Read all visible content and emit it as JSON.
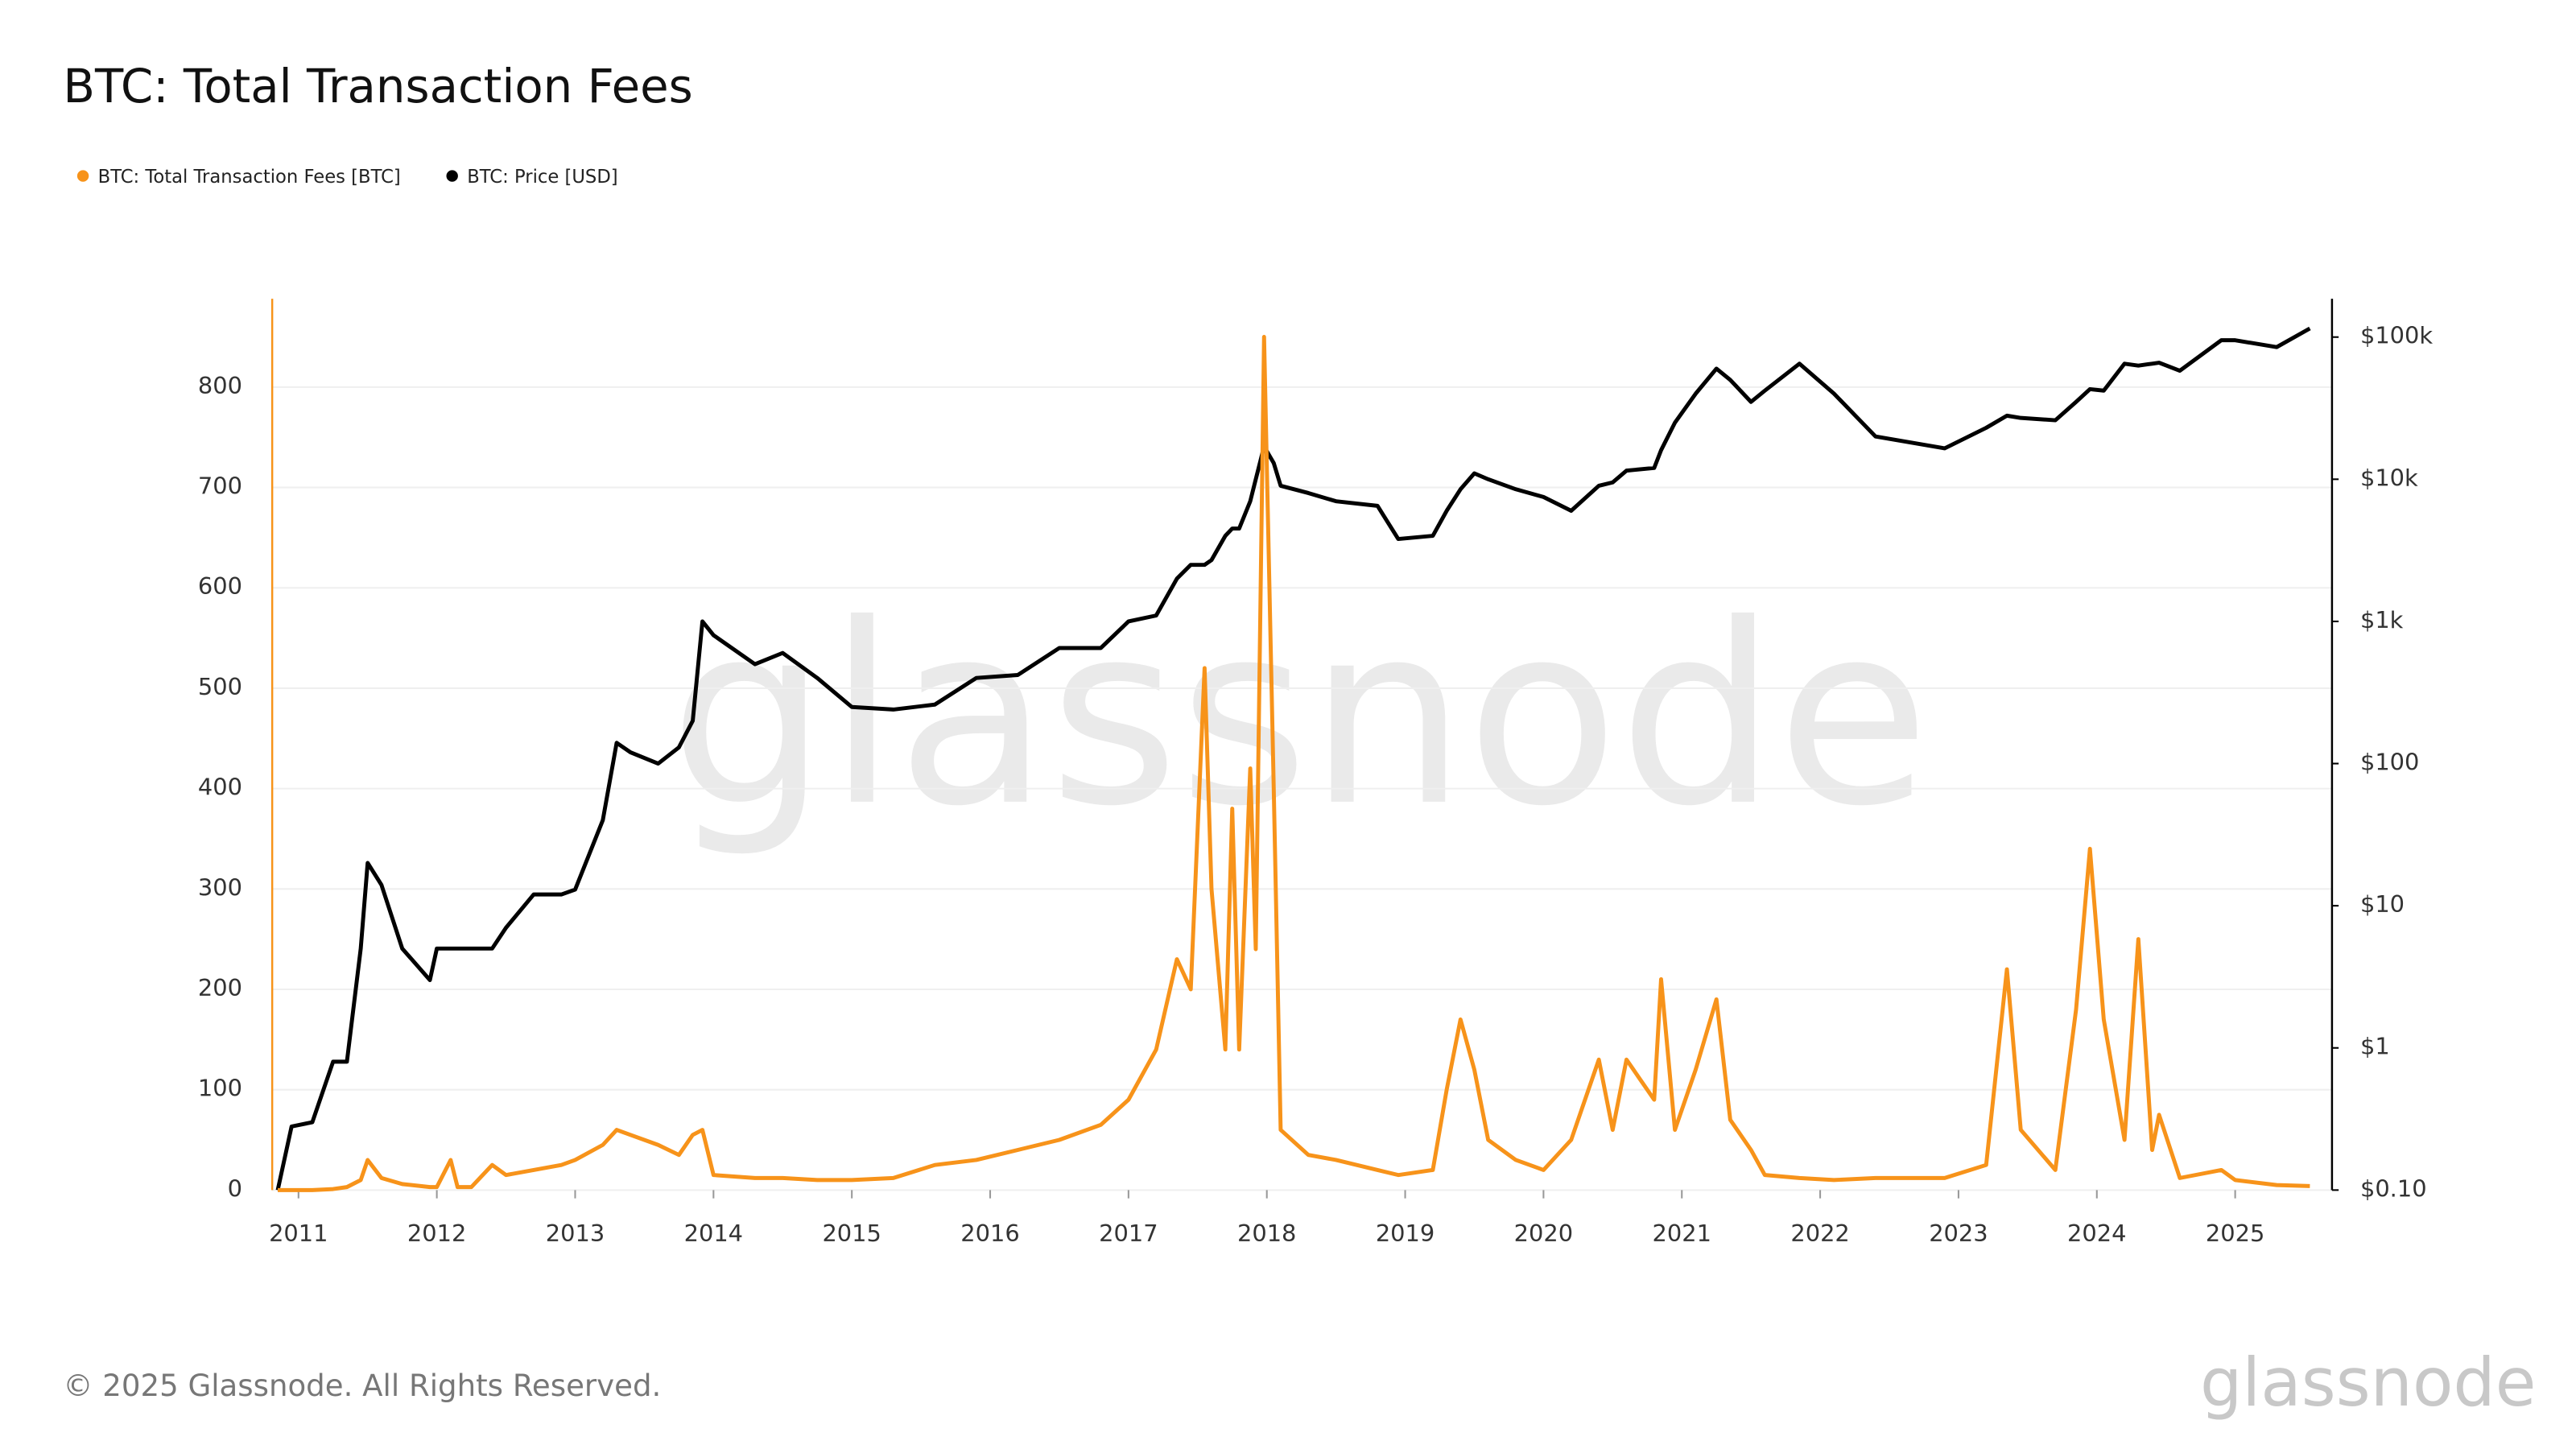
{
  "chart_data": {
    "type": "line",
    "title": "BTC: Total Transaction Fees",
    "footer": "© 2025 Glassnode. All Rights Reserved.",
    "watermark": "glassnode",
    "logo": "glassnode",
    "legend": "top-left",
    "grid": true,
    "y2_scale": "log",
    "x": [
      2010.85,
      2010.95,
      2011.1,
      2011.25,
      2011.35,
      2011.45,
      2011.5,
      2011.6,
      2011.75,
      2011.95,
      2012.0,
      2012.1,
      2012.15,
      2012.25,
      2012.4,
      2012.5,
      2012.7,
      2012.9,
      2013.0,
      2013.2,
      2013.3,
      2013.4,
      2013.6,
      2013.75,
      2013.85,
      2013.92,
      2014.0,
      2014.3,
      2014.5,
      2014.75,
      2015.0,
      2015.3,
      2015.6,
      2015.9,
      2016.2,
      2016.5,
      2016.8,
      2017.0,
      2017.2,
      2017.35,
      2017.45,
      2017.55,
      2017.6,
      2017.7,
      2017.75,
      2017.8,
      2017.88,
      2017.92,
      2017.98,
      2018.05,
      2018.1,
      2018.3,
      2018.5,
      2018.8,
      2018.95,
      2019.2,
      2019.3,
      2019.4,
      2019.5,
      2019.6,
      2019.8,
      2020.0,
      2020.2,
      2020.4,
      2020.5,
      2020.6,
      2020.8,
      2020.85,
      2020.95,
      2021.1,
      2021.25,
      2021.35,
      2021.5,
      2021.6,
      2021.85,
      2022.1,
      2022.4,
      2022.9,
      2023.2,
      2023.35,
      2023.45,
      2023.7,
      2023.85,
      2023.95,
      2024.05,
      2024.2,
      2024.3,
      2024.4,
      2024.45,
      2024.6,
      2024.9,
      2025.0,
      2025.3,
      2025.54
    ],
    "series": [
      {
        "name": "BTC: Total Transaction Fees [BTC]",
        "color": "#f7931a",
        "axis": "y",
        "values": [
          0,
          0,
          0,
          1,
          3,
          10,
          30,
          12,
          6,
          3,
          3,
          30,
          3,
          3,
          25,
          15,
          20,
          25,
          30,
          45,
          60,
          55,
          45,
          35,
          55,
          60,
          15,
          12,
          12,
          10,
          10,
          12,
          25,
          30,
          40,
          50,
          65,
          90,
          140,
          230,
          200,
          520,
          300,
          140,
          380,
          140,
          420,
          240,
          850,
          400,
          60,
          35,
          30,
          20,
          15,
          20,
          100,
          170,
          120,
          50,
          30,
          20,
          50,
          130,
          60,
          130,
          90,
          210,
          60,
          120,
          190,
          70,
          40,
          15,
          12,
          10,
          12,
          12,
          25,
          220,
          60,
          20,
          180,
          340,
          170,
          50,
          250,
          40,
          75,
          12,
          20,
          10,
          5,
          4
        ]
      },
      {
        "name": "BTC: Price [USD]",
        "color": "#000000",
        "axis": "y2",
        "values": [
          0.1,
          0.28,
          0.3,
          0.8,
          0.8,
          5,
          20,
          14,
          5,
          3,
          5,
          5,
          5,
          5,
          5,
          7,
          12,
          12,
          13,
          40,
          140,
          120,
          100,
          130,
          200,
          1000,
          800,
          500,
          600,
          400,
          250,
          240,
          260,
          400,
          420,
          650,
          650,
          1000,
          1100,
          2000,
          2500,
          2500,
          2700,
          4000,
          4500,
          4500,
          7000,
          10000,
          17000,
          13000,
          9000,
          8000,
          7000,
          6500,
          3800,
          4000,
          6000,
          8500,
          11000,
          10000,
          8500,
          7500,
          6000,
          9000,
          9500,
          11500,
          12000,
          16000,
          25000,
          40000,
          60000,
          50000,
          35000,
          42000,
          65000,
          40000,
          20000,
          16500,
          23000,
          28000,
          27000,
          26000,
          35000,
          43000,
          42000,
          65000,
          63000,
          65000,
          66000,
          58000,
          95000,
          95000,
          85000,
          115000
        ]
      }
    ],
    "xlim": [
      2010.81,
      2025.7
    ],
    "xticks": [
      2011,
      2012,
      2013,
      2014,
      2015,
      2016,
      2017,
      2018,
      2019,
      2020,
      2021,
      2022,
      2023,
      2024,
      2025
    ],
    "ylim": [
      0,
      888
    ],
    "yticks": [
      0,
      100,
      200,
      300,
      400,
      500,
      600,
      700,
      800
    ],
    "y2lim": [
      0.1,
      186000
    ],
    "y2ticks": [
      {
        "value": 0.1,
        "label": "$0.10"
      },
      {
        "value": 1,
        "label": "$1"
      },
      {
        "value": 10,
        "label": "$10"
      },
      {
        "value": 100,
        "label": "$100"
      },
      {
        "value": 1000,
        "label": "$1k"
      },
      {
        "value": 10000,
        "label": "$10k"
      },
      {
        "value": 100000,
        "label": "$100k"
      }
    ]
  }
}
